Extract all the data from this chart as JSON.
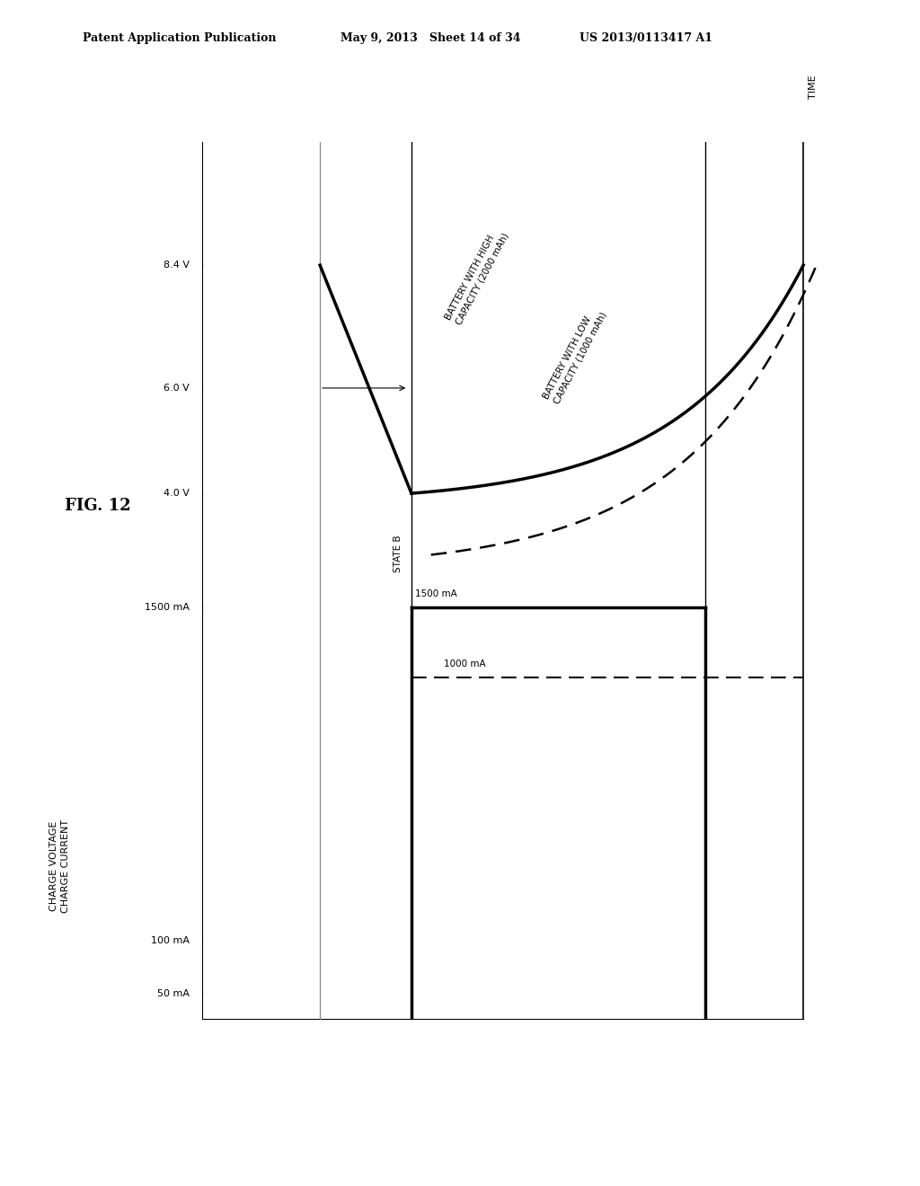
{
  "header_left": "Patent Application Publication",
  "header_mid": "May 9, 2013   Sheet 14 of 34",
  "header_right": "US 2013/0113417 A1",
  "fig_label": "FIG. 12",
  "time_label": "TIME",
  "state_b": "STATE B",
  "label_high_cap": "BATTERY WITH HIGH\nCAPACITY (2000 mAh)",
  "label_low_cap": "BATTERY WITH LOW\nCAPACITY (1000 mAh)",
  "label_1500": "1500 mA",
  "label_1000": "1000 mA",
  "y_axis_label": "CHARGE VOLTAGE\nCHARGE CURRENT",
  "tick_labels": [
    "8.4 V",
    "6.0 V",
    "4.0 V",
    "1500 mA",
    "100 mA",
    "50 mA"
  ],
  "bg_color": "#ffffff",
  "line_color": "#000000",
  "gray_line_color": "#888888",
  "font_family": "DejaVu Sans",
  "header_fontsize": 9,
  "tick_fontsize": 8,
  "label_fontsize": 7.5,
  "fig_label_fontsize": 13
}
